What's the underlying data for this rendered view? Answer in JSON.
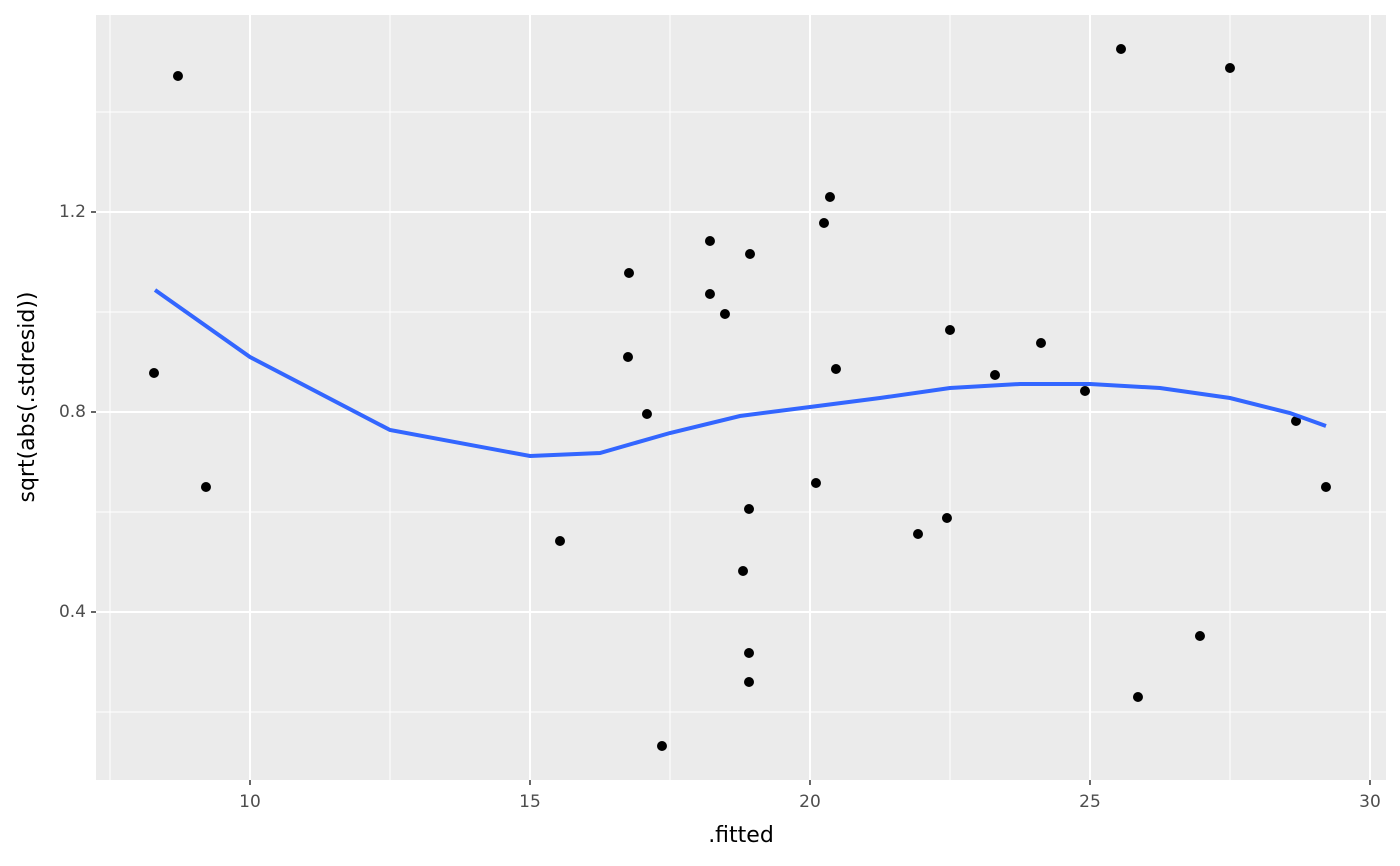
{
  "chart_data": {
    "type": "scatter",
    "x_label": ".fitted",
    "y_label": "sqrt(abs(.stdresid))",
    "xlim": [
      7.25,
      30.286
    ],
    "ylim": [
      0.064,
      1.594
    ],
    "xticks": [
      10,
      15,
      20,
      25,
      30
    ],
    "yticks": [
      0.4,
      0.8,
      1.2
    ],
    "minor_xticks": [
      7.5,
      12.5,
      17.5,
      22.5,
      27.5
    ],
    "minor_yticks": [
      0.2,
      0.6,
      1.0,
      1.4
    ],
    "grid": true,
    "series": [
      {
        "mode": "markers",
        "color": "#000000",
        "x": [
          8.714,
          8.286,
          9.214,
          15.536,
          16.768,
          16.75,
          17.089,
          17.357,
          18.214,
          18.214,
          18.482,
          18.929,
          18.911,
          18.804,
          18.911,
          18.911,
          20.357,
          20.25,
          20.464,
          20.107,
          21.929,
          22.446,
          22.5,
          23.304,
          24.125,
          24.911,
          25.554,
          27.5,
          25.857,
          26.964,
          28.679,
          29.214
        ],
        "values": [
          1.472,
          0.878,
          0.65,
          0.542,
          1.078,
          0.91,
          0.796,
          0.132,
          1.142,
          1.036,
          0.996,
          1.116,
          0.606,
          0.482,
          0.318,
          0.26,
          1.23,
          1.178,
          0.886,
          0.658,
          0.556,
          0.588,
          0.964,
          0.874,
          0.938,
          0.842,
          1.526,
          1.488,
          0.23,
          0.352,
          0.782,
          0.65
        ]
      },
      {
        "mode": "line",
        "color": "#3366FF",
        "x": [
          8.304,
          10,
          12.5,
          15,
          16.25,
          17.5,
          18.75,
          20,
          21.25,
          22.5,
          23.75,
          25,
          26.25,
          27.5,
          28.57,
          29.214
        ],
        "values": [
          1.044,
          0.91,
          0.764,
          0.712,
          0.718,
          0.758,
          0.792,
          0.81,
          0.828,
          0.848,
          0.856,
          0.856,
          0.848,
          0.828,
          0.798,
          0.772
        ]
      }
    ]
  }
}
